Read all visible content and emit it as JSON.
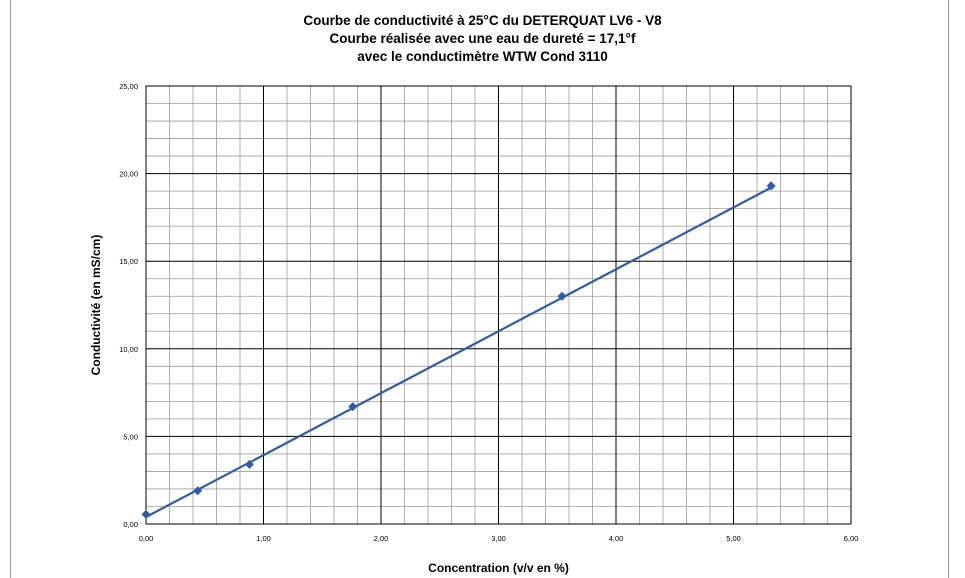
{
  "chart_data": {
    "type": "line",
    "title": "Courbe de conductivité à 25°C du DETERQUAT LV6 - V8",
    "subtitle_1": "Courbe réalisée avec une eau de dureté = 17,1°f",
    "subtitle_2": "avec le conductimètre WTW Cond 3110",
    "xlabel": "Concentration (v/v en %)",
    "ylabel": "Conductivité  (en  mS/cm)",
    "xlim": [
      0,
      6
    ],
    "ylim": [
      0,
      25
    ],
    "x_ticks": [
      "0,00",
      "1,00",
      "2,00",
      "3,00",
      "4,00",
      "5,00",
      "6,00"
    ],
    "y_ticks": [
      "0,00",
      "5,00",
      "10,00",
      "15,00",
      "20,00",
      "25,00"
    ],
    "grid": true,
    "minor_grid_x": 0.2,
    "minor_grid_y": 1.0,
    "series": [
      {
        "markers": "diamond",
        "color": "#2e5ca8",
        "x": [
          0.0,
          0.44,
          0.88,
          1.76,
          3.54,
          5.32
        ],
        "y": [
          0.55,
          1.9,
          3.4,
          6.7,
          13.0,
          19.3
        ]
      }
    ],
    "trendline": {
      "color": "#2e5ca8",
      "x": [
        0.0,
        5.32
      ],
      "y": [
        0.4,
        19.2
      ]
    }
  }
}
